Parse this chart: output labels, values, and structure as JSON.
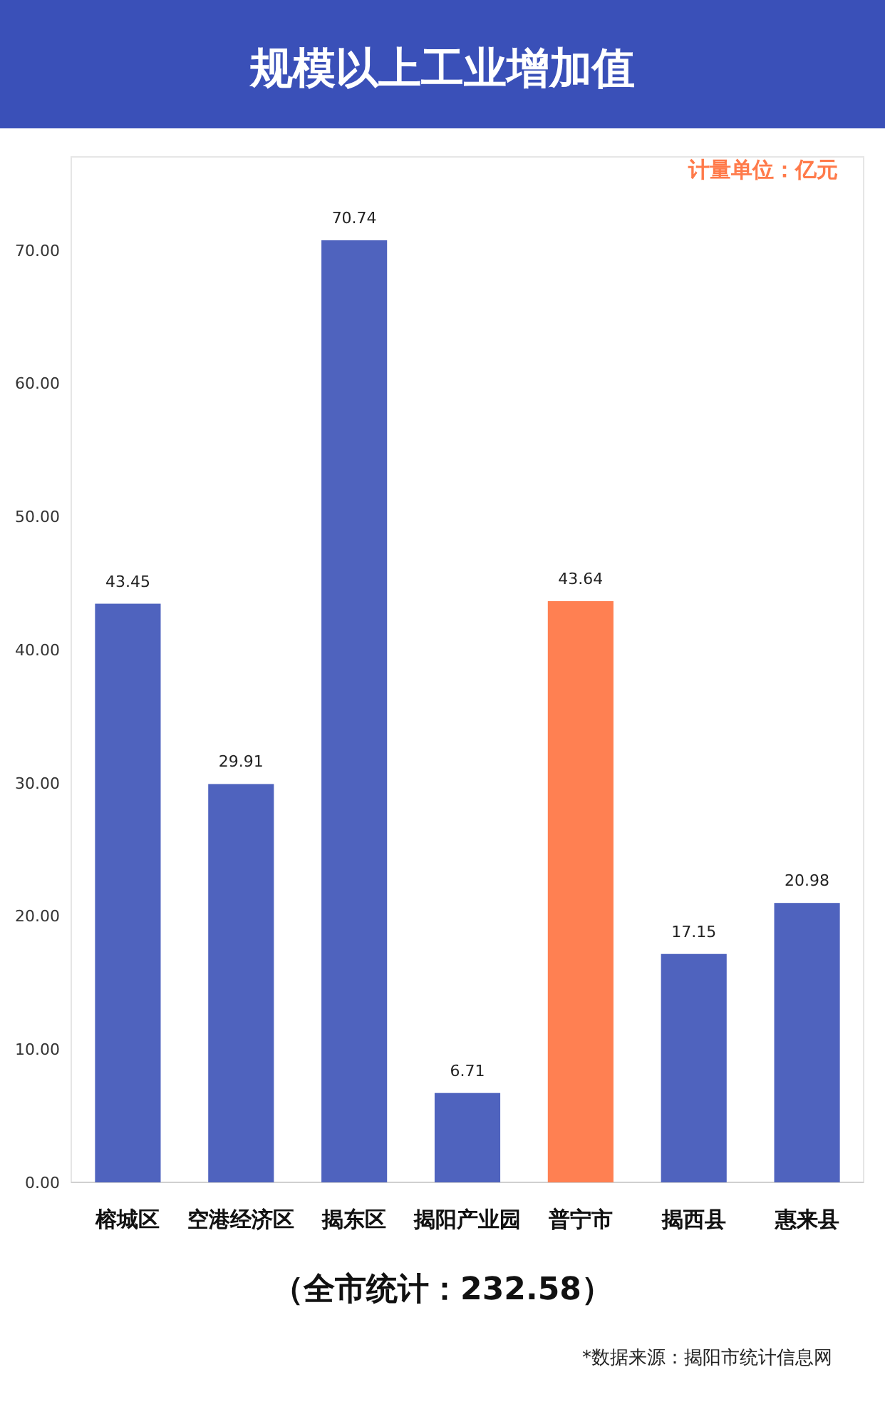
{
  "chart_data": {
    "type": "bar",
    "title": "规模以上工业增加值",
    "categories": [
      "榕城区",
      "空港经济区",
      "揭东区",
      "揭阳产业园",
      "普宁市",
      "揭西县",
      "惠来县"
    ],
    "values": [
      43.45,
      29.91,
      70.74,
      6.71,
      43.64,
      17.15,
      20.98
    ],
    "colors": [
      "#4f63be",
      "#4f63be",
      "#4f63be",
      "#4f63be",
      "#ff8052",
      "#4f63be",
      "#4f63be"
    ],
    "value_labels": [
      "43.45",
      "29.91",
      "70.74",
      "6.71",
      "43.64",
      "17.15",
      "20.98"
    ],
    "ylim": [
      0,
      77
    ],
    "yticks": [
      {
        "value": 0,
        "label": "0.00"
      },
      {
        "value": 10,
        "label": "10.00"
      },
      {
        "value": 20,
        "label": "20.00"
      },
      {
        "value": 30,
        "label": "30.00"
      },
      {
        "value": 40,
        "label": "40.00"
      },
      {
        "value": 50,
        "label": "50.00"
      },
      {
        "value": 60,
        "label": "60.00"
      },
      {
        "value": 70,
        "label": "70.00"
      }
    ],
    "grid": false,
    "annotations": [
      "计量单位：亿元",
      "（全市统计：232.58）",
      "*数据来源：揭阳市统计信息网"
    ]
  }
}
